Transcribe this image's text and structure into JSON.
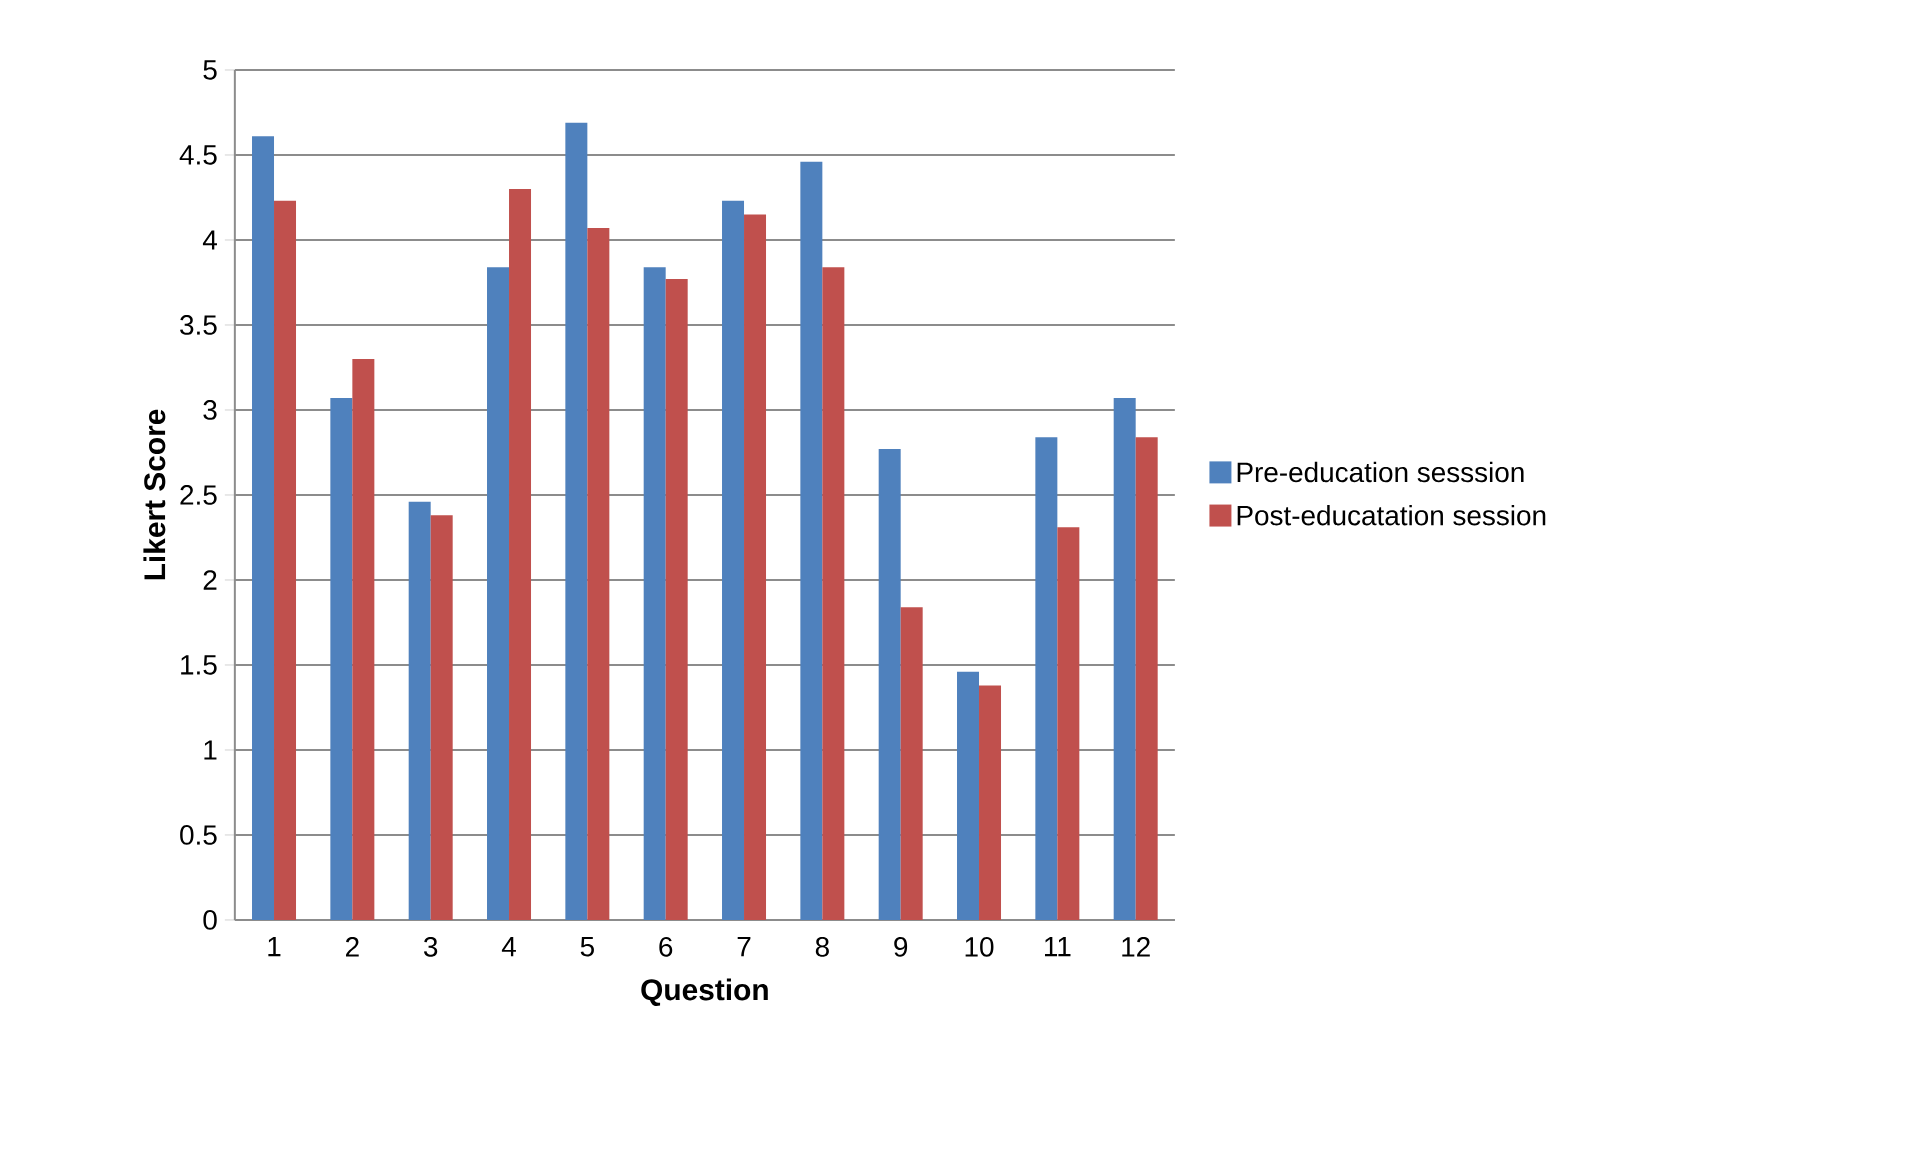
{
  "chart_data": {
    "type": "bar",
    "xlabel": "Question",
    "ylabel": "Likert Score",
    "categories": [
      "1",
      "2",
      "3",
      "4",
      "5",
      "6",
      "7",
      "8",
      "9",
      "10",
      "11",
      "12"
    ],
    "series": [
      {
        "name": "Pre-education sesssion",
        "color": "#4f81bd",
        "values": [
          4.61,
          3.07,
          2.46,
          3.84,
          4.69,
          3.84,
          4.23,
          4.46,
          2.77,
          1.46,
          2.84,
          3.07
        ]
      },
      {
        "name": "Post-educatation session",
        "color": "#c0504d",
        "values": [
          4.23,
          3.3,
          2.38,
          4.3,
          4.07,
          3.77,
          4.15,
          3.84,
          1.84,
          1.38,
          2.31,
          2.84
        ]
      }
    ],
    "ylim": [
      0,
      5
    ],
    "yticks": [
      0,
      0.5,
      1,
      1.5,
      2,
      2.5,
      3,
      3.5,
      4,
      4.5,
      5
    ],
    "grid": "y",
    "legend": "right"
  }
}
